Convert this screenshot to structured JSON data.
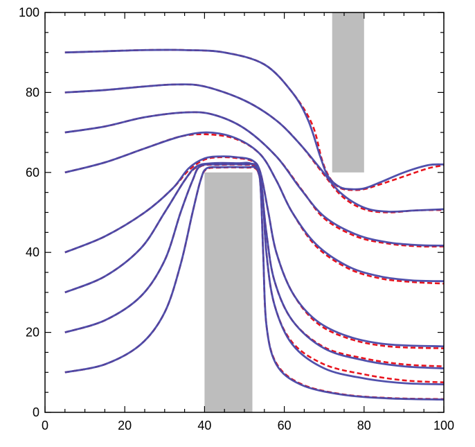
{
  "chart_data": {
    "type": "line",
    "title": "",
    "xlabel": "",
    "ylabel": "",
    "xlim": [
      0,
      100
    ],
    "ylim": [
      0,
      100
    ],
    "x_ticks": [
      "0",
      "20",
      "40",
      "60",
      "80",
      "100"
    ],
    "y_ticks": [
      "0",
      "20",
      "40",
      "60",
      "80",
      "100"
    ],
    "grid": false,
    "colors": {
      "solid": "#4848a8",
      "dashed": "#e8141e",
      "obstacle": "#bdbdbd",
      "frame": "#000000"
    },
    "obstacles": [
      {
        "x": [
          40,
          52
        ],
        "y": [
          0,
          60
        ]
      },
      {
        "x": [
          72,
          80
        ],
        "y": [
          60,
          100
        ]
      }
    ],
    "series": [
      {
        "solid": [
          [
            5,
            90
          ],
          [
            15,
            90.3
          ],
          [
            25,
            90.6
          ],
          [
            35,
            90.6
          ],
          [
            45,
            90
          ],
          [
            55,
            87
          ],
          [
            62,
            80
          ],
          [
            66,
            73
          ],
          [
            69,
            64
          ],
          [
            71,
            59
          ],
          [
            74,
            56.3
          ],
          [
            77,
            55.8
          ],
          [
            80,
            56
          ],
          [
            84,
            57.5
          ],
          [
            90,
            60
          ],
          [
            96,
            61.8
          ],
          [
            100,
            62
          ]
        ],
        "dashed": [
          [
            5,
            90
          ],
          [
            15,
            90.3
          ],
          [
            25,
            90.6
          ],
          [
            35,
            90.6
          ],
          [
            45,
            90
          ],
          [
            55,
            87
          ],
          [
            62,
            80
          ],
          [
            67,
            72
          ],
          [
            69.5,
            63
          ],
          [
            71.5,
            58.5
          ],
          [
            74,
            56.1
          ],
          [
            77,
            55.6
          ],
          [
            80,
            55.8
          ],
          [
            84,
            57
          ],
          [
            90,
            59
          ],
          [
            96,
            61
          ],
          [
            100,
            61.8
          ]
        ]
      },
      {
        "solid": [
          [
            5,
            80
          ],
          [
            15,
            80.6
          ],
          [
            25,
            81.5
          ],
          [
            33,
            82
          ],
          [
            40,
            81.5
          ],
          [
            50,
            78
          ],
          [
            58,
            73
          ],
          [
            64,
            67
          ],
          [
            69,
            61
          ],
          [
            74,
            55
          ],
          [
            80,
            51.2
          ],
          [
            86,
            50.2
          ],
          [
            93,
            50.5
          ],
          [
            100,
            50.8
          ]
        ],
        "dashed": [
          [
            5,
            80
          ],
          [
            15,
            80.6
          ],
          [
            25,
            81.5
          ],
          [
            33,
            82
          ],
          [
            40,
            81.5
          ],
          [
            50,
            78
          ],
          [
            58,
            73
          ],
          [
            64,
            67
          ],
          [
            69.5,
            60
          ],
          [
            74.5,
            54
          ],
          [
            80,
            50.8
          ],
          [
            86,
            50
          ],
          [
            93,
            50.5
          ],
          [
            100,
            50.6
          ]
        ]
      },
      {
        "solid": [
          [
            5,
            70
          ],
          [
            15,
            71.5
          ],
          [
            25,
            73.8
          ],
          [
            35,
            75
          ],
          [
            42,
            74.5
          ],
          [
            50,
            71
          ],
          [
            58,
            64
          ],
          [
            64,
            56
          ],
          [
            70,
            49
          ],
          [
            78,
            44.5
          ],
          [
            86,
            42.5
          ],
          [
            94,
            41.8
          ],
          [
            100,
            41.7
          ]
        ],
        "dashed": [
          [
            5,
            70
          ],
          [
            15,
            71.5
          ],
          [
            25,
            73.8
          ],
          [
            35,
            75
          ],
          [
            42,
            74.5
          ],
          [
            50,
            71
          ],
          [
            58,
            64
          ],
          [
            64.5,
            55.5
          ],
          [
            70,
            48.5
          ],
          [
            78,
            44
          ],
          [
            86,
            42.2
          ],
          [
            94,
            41.5
          ],
          [
            100,
            41.5
          ]
        ]
      },
      {
        "solid": [
          [
            5,
            60
          ],
          [
            15,
            62.5
          ],
          [
            25,
            66
          ],
          [
            34,
            69
          ],
          [
            41,
            70
          ],
          [
            48,
            68.5
          ],
          [
            54,
            64.5
          ],
          [
            58,
            58
          ],
          [
            62,
            50
          ],
          [
            68,
            42
          ],
          [
            76,
            36.5
          ],
          [
            84,
            34
          ],
          [
            92,
            33
          ],
          [
            100,
            32.8
          ]
        ],
        "dashed": [
          [
            5,
            60
          ],
          [
            15,
            62.5
          ],
          [
            25,
            66
          ],
          [
            34,
            69
          ],
          [
            41,
            69.5
          ],
          [
            48,
            68.3
          ],
          [
            54,
            64.5
          ],
          [
            58,
            58
          ],
          [
            62,
            50
          ],
          [
            68,
            41.5
          ],
          [
            76,
            36
          ],
          [
            84,
            33.5
          ],
          [
            92,
            32.6
          ],
          [
            100,
            32.2
          ]
        ]
      },
      {
        "solid": [
          [
            5,
            40
          ],
          [
            15,
            44
          ],
          [
            25,
            50
          ],
          [
            32,
            56
          ],
          [
            36,
            61
          ],
          [
            40,
            63.5
          ],
          [
            44,
            64
          ],
          [
            48,
            63.8
          ],
          [
            52,
            63
          ],
          [
            54,
            60
          ],
          [
            56,
            50
          ],
          [
            58,
            40
          ],
          [
            62,
            30
          ],
          [
            68,
            23
          ],
          [
            76,
            19
          ],
          [
            86,
            17
          ],
          [
            100,
            16.5
          ]
        ],
        "dashed": [
          [
            5,
            40
          ],
          [
            15,
            44
          ],
          [
            25,
            50
          ],
          [
            32,
            56
          ],
          [
            36,
            60.5
          ],
          [
            40,
            63.2
          ],
          [
            44,
            63.8
          ],
          [
            48,
            63.6
          ],
          [
            52,
            62.8
          ],
          [
            54,
            60
          ],
          [
            56,
            50
          ],
          [
            58,
            40
          ],
          [
            62,
            30
          ],
          [
            68,
            22.5
          ],
          [
            76,
            18.5
          ],
          [
            86,
            16.5
          ],
          [
            100,
            16
          ]
        ]
      },
      {
        "solid": [
          [
            5,
            30
          ],
          [
            15,
            34
          ],
          [
            24,
            41
          ],
          [
            30,
            50
          ],
          [
            35,
            58
          ],
          [
            38,
            61.5
          ],
          [
            42,
            62.3
          ],
          [
            48,
            62.3
          ],
          [
            52,
            62
          ],
          [
            54,
            58
          ],
          [
            55.5,
            45
          ],
          [
            57.5,
            33
          ],
          [
            62,
            23
          ],
          [
            70,
            16
          ],
          [
            80,
            13
          ],
          [
            90,
            11.5
          ],
          [
            100,
            11
          ]
        ],
        "dashed": [
          [
            5,
            30
          ],
          [
            15,
            34
          ],
          [
            24,
            41
          ],
          [
            30,
            50
          ],
          [
            35,
            58
          ],
          [
            38,
            61.3
          ],
          [
            42,
            62.2
          ],
          [
            48,
            62.2
          ],
          [
            52,
            61.8
          ],
          [
            54,
            58
          ],
          [
            55.5,
            45
          ],
          [
            57.5,
            33
          ],
          [
            62,
            23
          ],
          [
            70,
            16.3
          ],
          [
            80,
            13.5
          ],
          [
            90,
            12
          ],
          [
            100,
            11.5
          ]
        ]
      },
      {
        "solid": [
          [
            5,
            20
          ],
          [
            15,
            23
          ],
          [
            24,
            29
          ],
          [
            30,
            38
          ],
          [
            34,
            50
          ],
          [
            37,
            58
          ],
          [
            39,
            61.6
          ],
          [
            44,
            62
          ],
          [
            50,
            62
          ],
          [
            53,
            61.5
          ],
          [
            54.5,
            55
          ],
          [
            55.5,
            40
          ],
          [
            57.5,
            27
          ],
          [
            62,
            17
          ],
          [
            70,
            11
          ],
          [
            80,
            8.5
          ],
          [
            90,
            7.3
          ],
          [
            100,
            7
          ]
        ],
        "dashed": [
          [
            5,
            20
          ],
          [
            15,
            23
          ],
          [
            24,
            29
          ],
          [
            30,
            38
          ],
          [
            34,
            50
          ],
          [
            37,
            58
          ],
          [
            39,
            61.5
          ],
          [
            44,
            61.9
          ],
          [
            50,
            61.9
          ],
          [
            53,
            61.3
          ],
          [
            54.5,
            55
          ],
          [
            55.5,
            40
          ],
          [
            57.5,
            27
          ],
          [
            62,
            17.5
          ],
          [
            70,
            12
          ],
          [
            80,
            9.5
          ],
          [
            90,
            8
          ],
          [
            100,
            7.5
          ]
        ]
      },
      {
        "solid": [
          [
            5,
            10
          ],
          [
            15,
            12
          ],
          [
            24,
            17
          ],
          [
            30,
            25
          ],
          [
            34,
            37
          ],
          [
            37,
            50
          ],
          [
            39,
            58
          ],
          [
            40.5,
            61
          ],
          [
            44,
            61.3
          ],
          [
            50,
            61.3
          ],
          [
            53,
            61
          ],
          [
            54,
            57
          ],
          [
            54.7,
            40
          ],
          [
            55.5,
            22
          ],
          [
            58,
            12
          ],
          [
            64,
            7
          ],
          [
            74,
            4.5
          ],
          [
            86,
            3.5
          ],
          [
            100,
            3.2
          ]
        ],
        "dashed": [
          [
            5,
            10
          ],
          [
            15,
            12
          ],
          [
            24,
            17
          ],
          [
            30,
            25
          ],
          [
            34,
            37
          ],
          [
            37,
            50
          ],
          [
            39,
            58
          ],
          [
            40.5,
            60.8
          ],
          [
            44,
            61.2
          ],
          [
            50,
            61.2
          ],
          [
            53,
            60.8
          ],
          [
            54,
            57
          ],
          [
            54.7,
            40
          ],
          [
            55.5,
            22
          ],
          [
            58,
            12.3
          ],
          [
            64,
            7.2
          ],
          [
            74,
            4.6
          ],
          [
            86,
            3.6
          ],
          [
            100,
            3.3
          ]
        ]
      }
    ]
  }
}
